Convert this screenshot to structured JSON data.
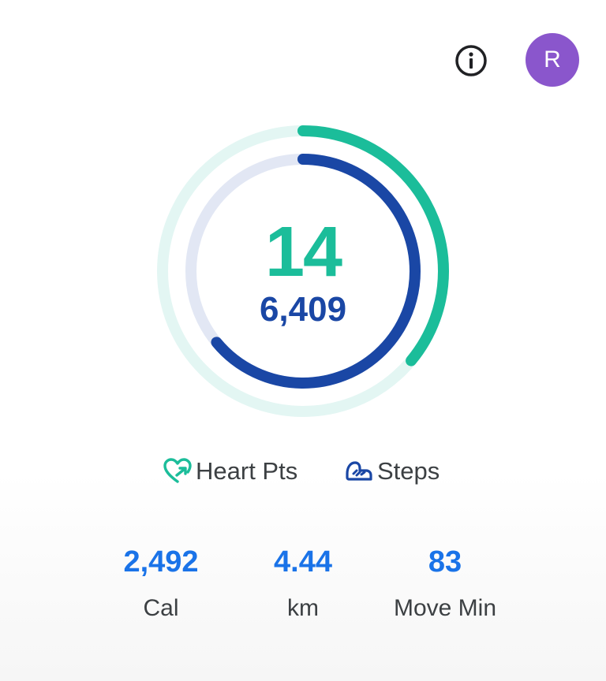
{
  "colors": {
    "heart_accent": "#1bbd9a",
    "heart_track": "#e3f6f3",
    "steps_accent": "#1a47a5",
    "steps_track": "#e2e7f4",
    "stat_value": "#1a73e8",
    "avatar_bg": "#8a56cc"
  },
  "header": {
    "info_icon": "info-icon",
    "avatar_initial": "R"
  },
  "rings": {
    "heart_points_value": "14",
    "steps_value": "6,409",
    "heart_points_progress": 0.36,
    "steps_progress": 0.64
  },
  "legend": {
    "heart_label": "Heart Pts",
    "heart_icon": "heart-points-icon",
    "steps_label": "Steps",
    "steps_icon": "steps-icon"
  },
  "stats": [
    {
      "value": "2,492",
      "label": "Cal"
    },
    {
      "value": "4.44",
      "label": "km"
    },
    {
      "value": "83",
      "label": "Move Min"
    }
  ]
}
